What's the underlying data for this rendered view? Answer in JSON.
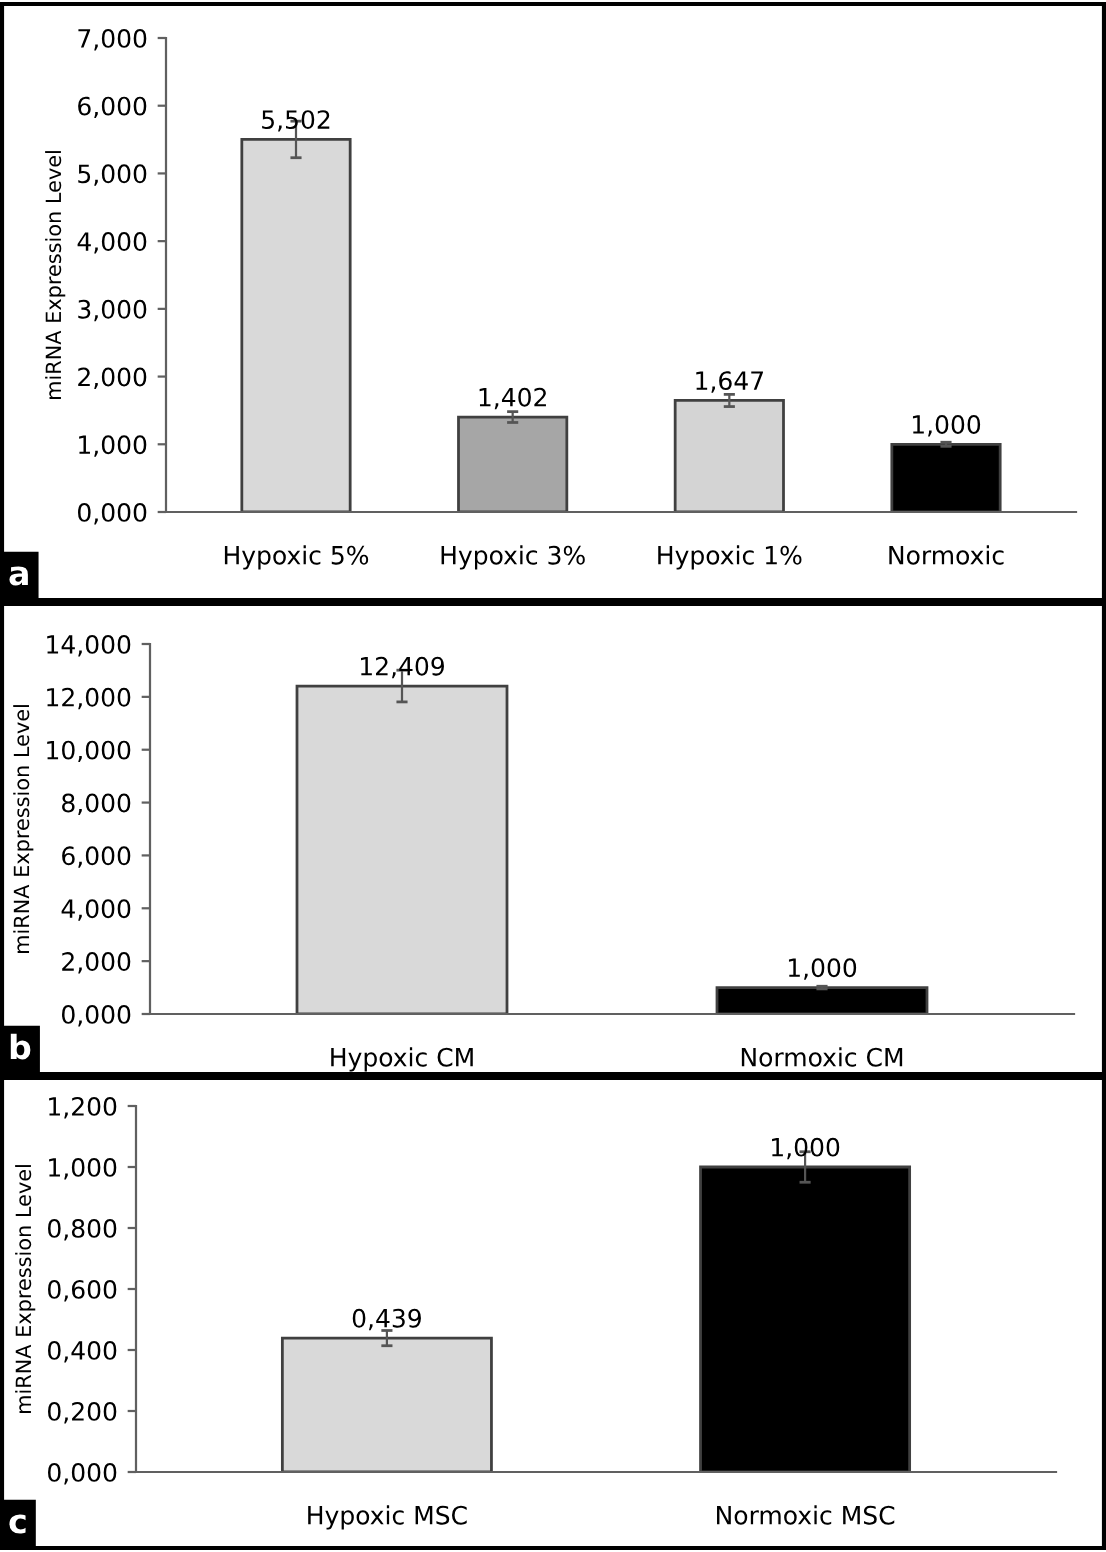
{
  "chart_data": [
    {
      "type": "bar",
      "ylabel": "miRNA Expression Level",
      "categories": [
        "Hypoxic 5%",
        "Hypoxic 3%",
        "Hypoxic 1%",
        "Normoxic"
      ],
      "values": [
        5.502,
        1.402,
        1.647,
        1.0
      ],
      "colors": [
        "#d9d9d9",
        "#a6a6a6",
        "#d4d4d4",
        "#000000"
      ],
      "errors": [
        0.27,
        0.08,
        0.09,
        0.03
      ],
      "value_labels": [
        "5,502",
        "1,402",
        "1,647",
        "1,000"
      ],
      "ylim": [
        0,
        7
      ],
      "yticks": [
        {
          "value": 0,
          "label": "0,000"
        },
        {
          "value": 1,
          "label": "1,000"
        },
        {
          "value": 2,
          "label": "2,000"
        },
        {
          "value": 3,
          "label": "3,000"
        },
        {
          "value": 4,
          "label": "4,000"
        },
        {
          "value": 5,
          "label": "5,000"
        },
        {
          "value": 6,
          "label": "6,000"
        },
        {
          "value": 7,
          "label": "7,000"
        }
      ],
      "grid": false,
      "annotations": [
        "a"
      ]
    },
    {
      "type": "bar",
      "ylabel": "miRNA Expression Level",
      "categories": [
        "Hypoxic CM",
        "Normoxic CM"
      ],
      "values": [
        12.409,
        1.0
      ],
      "colors": [
        "#d9d9d9",
        "#000000"
      ],
      "errors": [
        0.6,
        0.05
      ],
      "value_labels": [
        "12,409",
        "1,000"
      ],
      "ylim": [
        0,
        14
      ],
      "yticks": [
        {
          "value": 0,
          "label": "0,000"
        },
        {
          "value": 2,
          "label": "2,000"
        },
        {
          "value": 4,
          "label": "4,000"
        },
        {
          "value": 6,
          "label": "6,000"
        },
        {
          "value": 8,
          "label": "8,000"
        },
        {
          "value": 10,
          "label": "10,000"
        },
        {
          "value": 12,
          "label": "12,000"
        },
        {
          "value": 14,
          "label": "14,000"
        }
      ],
      "grid": false,
      "annotations": [
        "b"
      ]
    },
    {
      "type": "bar",
      "ylabel": "miRNA Expression Level",
      "categories": [
        "Hypoxic MSC",
        "Normoxic MSC"
      ],
      "values": [
        0.439,
        1.0
      ],
      "colors": [
        "#d9d9d9",
        "#000000"
      ],
      "errors": [
        0.025,
        0.05
      ],
      "value_labels": [
        "0,439",
        "1,000"
      ],
      "ylim": [
        0,
        1.2
      ],
      "yticks": [
        {
          "value": 0,
          "label": "0,000"
        },
        {
          "value": 0.2,
          "label": "0,200"
        },
        {
          "value": 0.4,
          "label": "0,400"
        },
        {
          "value": 0.6,
          "label": "0,600"
        },
        {
          "value": 0.8,
          "label": "0,800"
        },
        {
          "value": 1.0,
          "label": "1,000"
        },
        {
          "value": 1.2,
          "label": "1,200"
        }
      ],
      "grid": false,
      "annotations": [
        "c"
      ]
    }
  ]
}
